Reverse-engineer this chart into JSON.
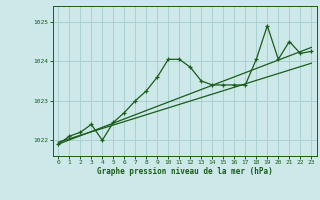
{
  "title": "Graphe pression niveau de la mer (hPa)",
  "background_color": "#cce8e8",
  "grid_color": "#aad0d0",
  "line_color": "#1a5c1a",
  "xlim": [
    -0.5,
    23.5
  ],
  "ylim": [
    1021.6,
    1025.4
  ],
  "yticks": [
    1022,
    1023,
    1024,
    1025
  ],
  "xticks": [
    0,
    1,
    2,
    3,
    4,
    5,
    6,
    7,
    8,
    9,
    10,
    11,
    12,
    13,
    14,
    15,
    16,
    17,
    18,
    19,
    20,
    21,
    22,
    23
  ],
  "series1_x": [
    0,
    1,
    2,
    3,
    4,
    5,
    6,
    7,
    8,
    9,
    10,
    11,
    12,
    13,
    14,
    15,
    16,
    17,
    18,
    19,
    20,
    21,
    22,
    23
  ],
  "series1_y": [
    1021.9,
    1022.1,
    1022.2,
    1022.4,
    1022.0,
    1022.45,
    1022.7,
    1023.0,
    1023.25,
    1023.6,
    1024.05,
    1024.05,
    1023.85,
    1023.5,
    1023.4,
    1023.4,
    1023.4,
    1023.4,
    1024.05,
    1024.9,
    1024.05,
    1024.5,
    1024.2,
    1024.25
  ],
  "trend1_x": [
    0,
    23
  ],
  "trend1_y": [
    1021.9,
    1024.35
  ],
  "trend2_x": [
    0,
    23
  ],
  "trend2_y": [
    1021.95,
    1023.95
  ]
}
